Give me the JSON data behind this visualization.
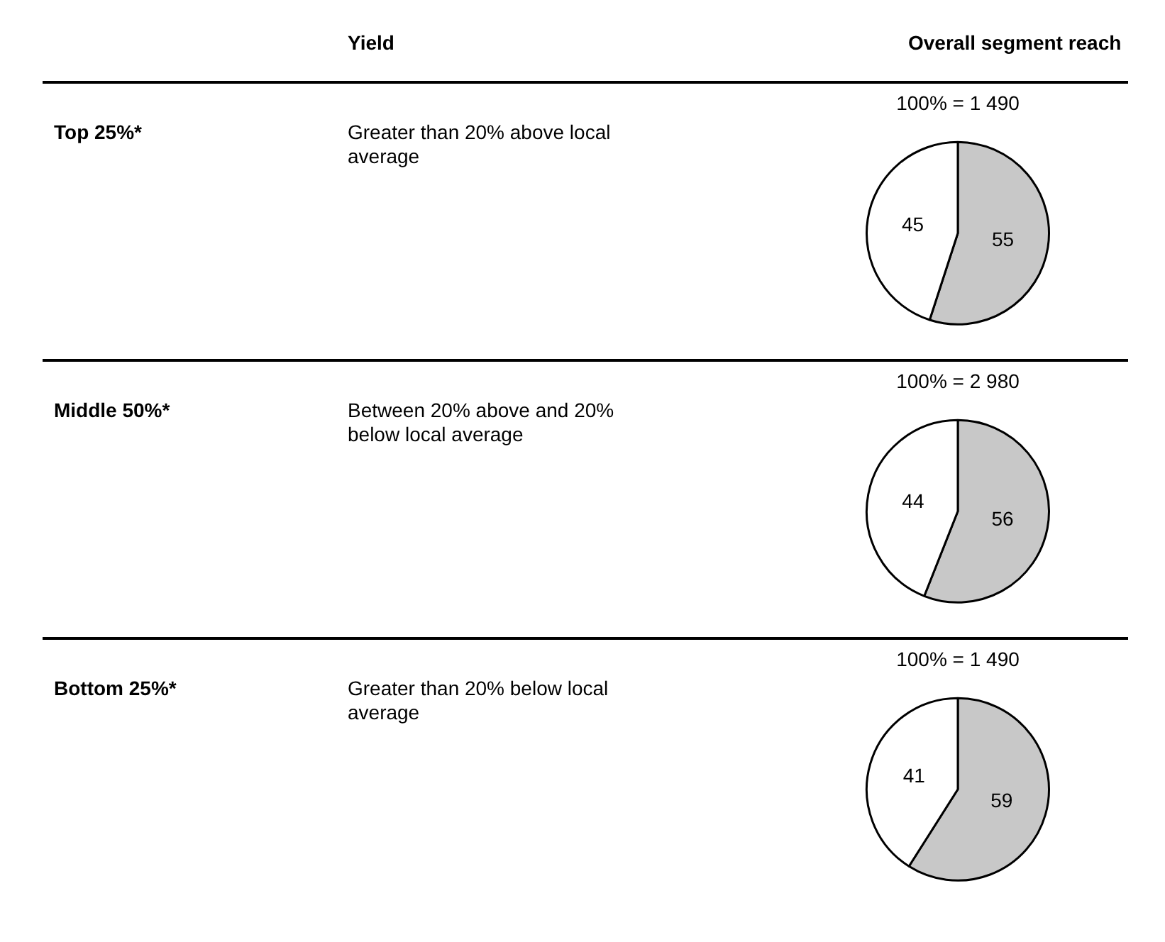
{
  "chart_data": [
    {
      "type": "other",
      "annotations": [
        "Yield",
        "Overall segment reach"
      ]
    },
    {
      "type": "pie",
      "title": "100% = 1 490",
      "categories": [
        null,
        null
      ],
      "values": [
        55,
        45
      ],
      "colors": [
        "#c8c8c8",
        "#ffffff"
      ],
      "data_labels": true,
      "legend": false,
      "annotations": [
        "Top 25%*",
        "Greater than 20% above local average"
      ]
    },
    {
      "type": "pie",
      "title": "100% = 2 980",
      "categories": [
        null,
        null
      ],
      "values": [
        56,
        44
      ],
      "colors": [
        "#c8c8c8",
        "#ffffff"
      ],
      "data_labels": true,
      "legend": false,
      "annotations": [
        "Middle 50%*",
        "Between 20% above and 20% below local average"
      ]
    },
    {
      "type": "pie",
      "title": "100% = 1 490",
      "categories": [
        null,
        null
      ],
      "values": [
        59,
        41
      ],
      "colors": [
        "#c8c8c8",
        "#ffffff"
      ],
      "data_labels": true,
      "legend": false,
      "annotations": [
        "Bottom 25%*",
        "Greater than 20% below local average"
      ]
    }
  ]
}
